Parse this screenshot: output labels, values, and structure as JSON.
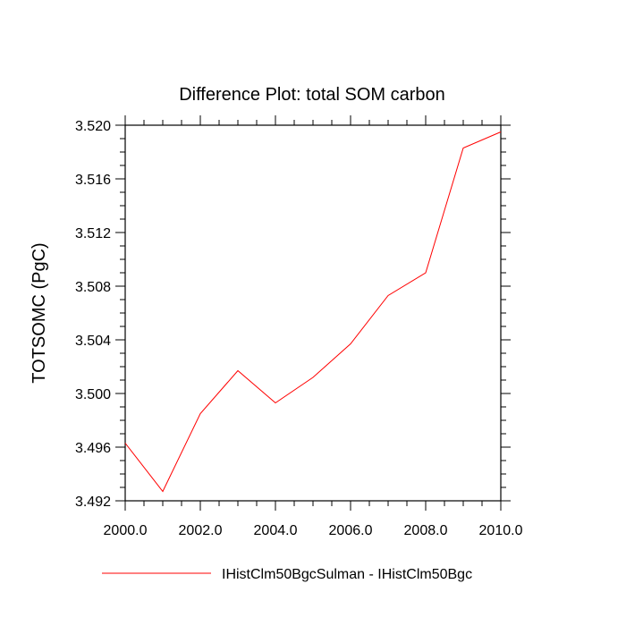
{
  "chart_data": {
    "type": "line",
    "title": "Difference Plot: total SOM carbon",
    "xlabel": "",
    "ylabel": "TOTSOMC  (PgC)",
    "xlim": [
      2000.0,
      2010.0
    ],
    "ylim": [
      3.492,
      3.52
    ],
    "x_ticks": [
      "2000.0",
      "2002.0",
      "2004.0",
      "2006.0",
      "2008.0",
      "2010.0"
    ],
    "y_ticks": [
      "3.492",
      "3.496",
      "3.500",
      "3.504",
      "3.508",
      "3.512",
      "3.516",
      "3.520"
    ],
    "grid": false,
    "legend_position": "bottom",
    "series": [
      {
        "name": "IHistClm50BgcSulman - IHistClm50Bgc",
        "color": "#ff0000",
        "x": [
          2000,
          2001,
          2002,
          2003,
          2004,
          2005,
          2006,
          2007,
          2008,
          2009,
          2010
        ],
        "y": [
          3.4963,
          3.4927,
          3.4985,
          3.5017,
          3.4993,
          3.5012,
          3.5037,
          3.5073,
          3.509,
          3.5183,
          3.5195
        ]
      }
    ]
  }
}
